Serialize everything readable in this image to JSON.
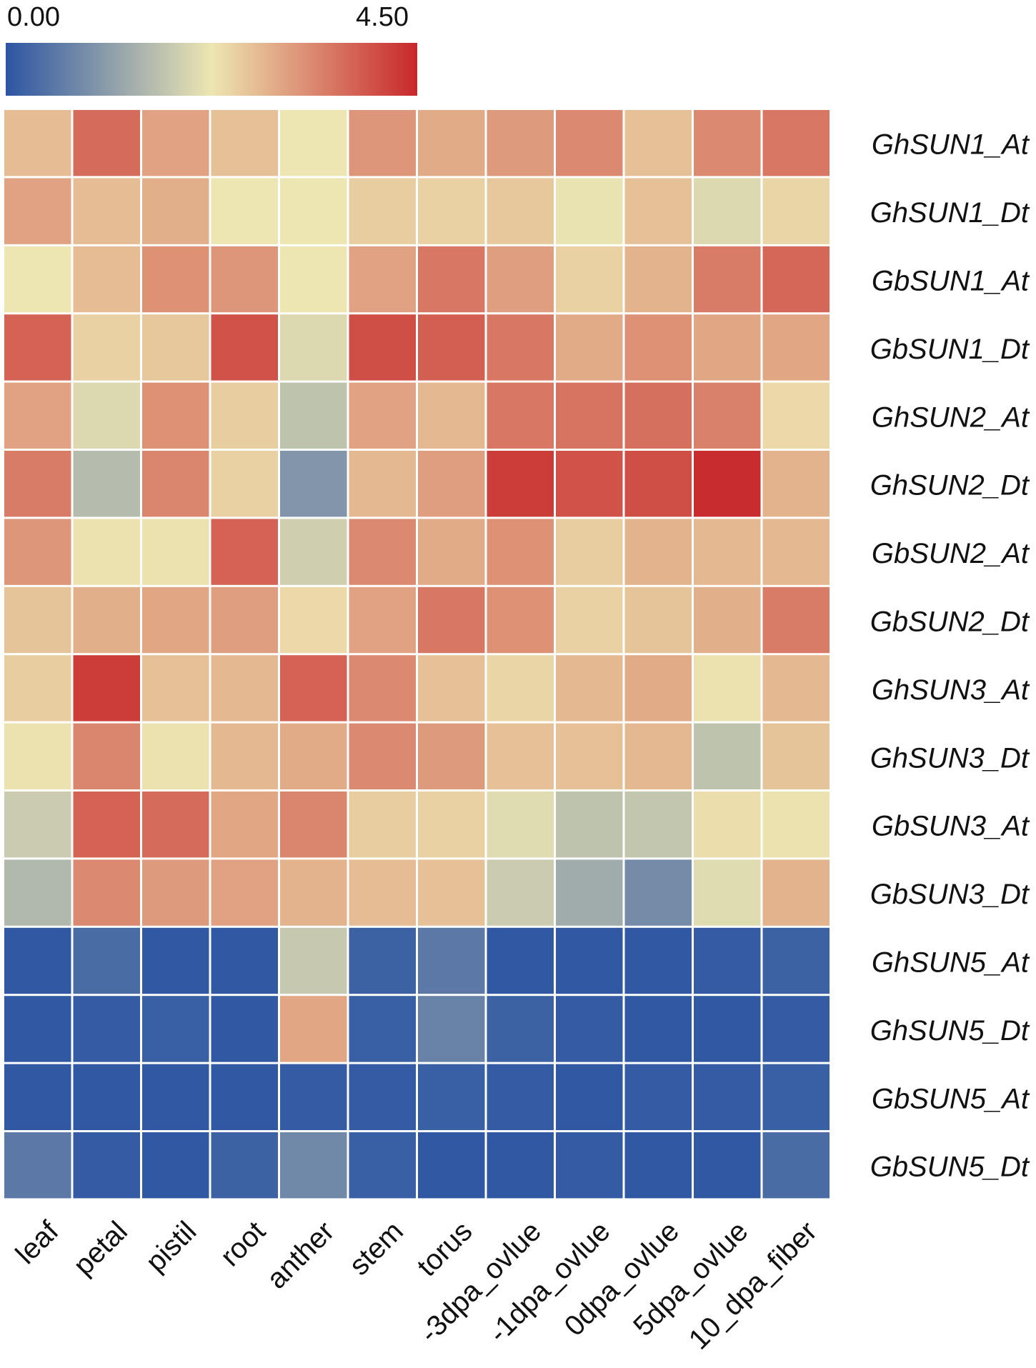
{
  "chart_data": {
    "type": "heatmap",
    "scale": {
      "min": 0.0,
      "max": 4.5,
      "min_label": "0.00",
      "max_label": "4.50",
      "colors": [
        "#2c55a3",
        "#ede6b2",
        "#c8282b"
      ]
    },
    "columns": [
      "leaf",
      "petal",
      "pistil",
      "root",
      "anther",
      "stem",
      "torus",
      "-3dpa_ovlue",
      "-1dpa_ovlue",
      "0dpa_ovlue",
      "5dpa_ovlue",
      "10_dpa_fiber"
    ],
    "rows": [
      "GhSUN1_At",
      "GhSUN1_Dt",
      "GbSUN1_At",
      "GbSUN1_Dt",
      "GhSUN2_At",
      "GhSUN2_Dt",
      "GbSUN2_At",
      "GbSUN2_Dt",
      "GhSUN3_At",
      "GhSUN3_Dt",
      "GbSUN3_At",
      "GbSUN3_Dt",
      "GhSUN5_At",
      "GhSUN5_Dt",
      "GbSUN5_At",
      "GbSUN5_Dt"
    ],
    "values": [
      [
        2.75,
        3.7,
        3.05,
        2.7,
        2.25,
        3.2,
        2.95,
        3.15,
        3.35,
        2.7,
        3.35,
        3.55
      ],
      [
        3.05,
        2.75,
        2.9,
        2.25,
        2.25,
        2.55,
        2.5,
        2.6,
        2.2,
        2.7,
        2.05,
        2.45
      ],
      [
        2.25,
        2.75,
        3.25,
        3.2,
        2.25,
        3.05,
        3.55,
        3.1,
        2.5,
        2.85,
        3.5,
        3.75
      ],
      [
        3.8,
        2.5,
        2.6,
        4.0,
        2.05,
        4.05,
        3.85,
        3.55,
        2.95,
        3.25,
        3.0,
        3.0
      ],
      [
        3.05,
        2.05,
        3.25,
        2.55,
        1.7,
        3.05,
        2.8,
        3.55,
        3.6,
        3.65,
        3.45,
        2.4
      ],
      [
        3.5,
        1.6,
        3.4,
        2.5,
        1.0,
        2.8,
        3.1,
        4.25,
        4.0,
        4.05,
        4.45,
        2.85
      ],
      [
        3.2,
        2.3,
        2.3,
        3.8,
        1.9,
        3.35,
        2.95,
        3.25,
        2.55,
        2.85,
        2.8,
        2.8
      ],
      [
        2.65,
        2.9,
        3.0,
        3.1,
        2.4,
        3.05,
        3.55,
        3.25,
        2.5,
        2.65,
        2.9,
        3.5
      ],
      [
        2.55,
        4.25,
        2.7,
        2.8,
        3.8,
        3.35,
        2.7,
        2.45,
        2.8,
        2.95,
        2.3,
        2.8
      ],
      [
        2.3,
        3.4,
        2.3,
        2.8,
        2.95,
        3.35,
        3.15,
        2.7,
        2.7,
        2.8,
        1.7,
        2.65
      ],
      [
        1.85,
        3.8,
        3.7,
        3.0,
        3.4,
        2.55,
        2.5,
        2.1,
        1.7,
        1.75,
        2.35,
        2.3
      ],
      [
        1.55,
        3.35,
        3.15,
        3.05,
        2.85,
        2.75,
        2.7,
        1.85,
        1.35,
        0.85,
        2.1,
        2.85
      ],
      [
        0.05,
        0.35,
        0.05,
        0.05,
        1.8,
        0.2,
        0.55,
        0.05,
        0.05,
        0.05,
        0.1,
        0.2
      ],
      [
        0.05,
        0.1,
        0.15,
        0.05,
        3.0,
        0.15,
        0.7,
        0.2,
        0.1,
        0.05,
        0.05,
        0.1
      ],
      [
        0.05,
        0.05,
        0.05,
        0.05,
        0.1,
        0.1,
        0.15,
        0.1,
        0.05,
        0.1,
        0.1,
        0.15
      ],
      [
        0.55,
        0.1,
        0.05,
        0.2,
        0.8,
        0.15,
        0.05,
        0.05,
        0.1,
        0.05,
        0.05,
        0.35
      ]
    ]
  }
}
